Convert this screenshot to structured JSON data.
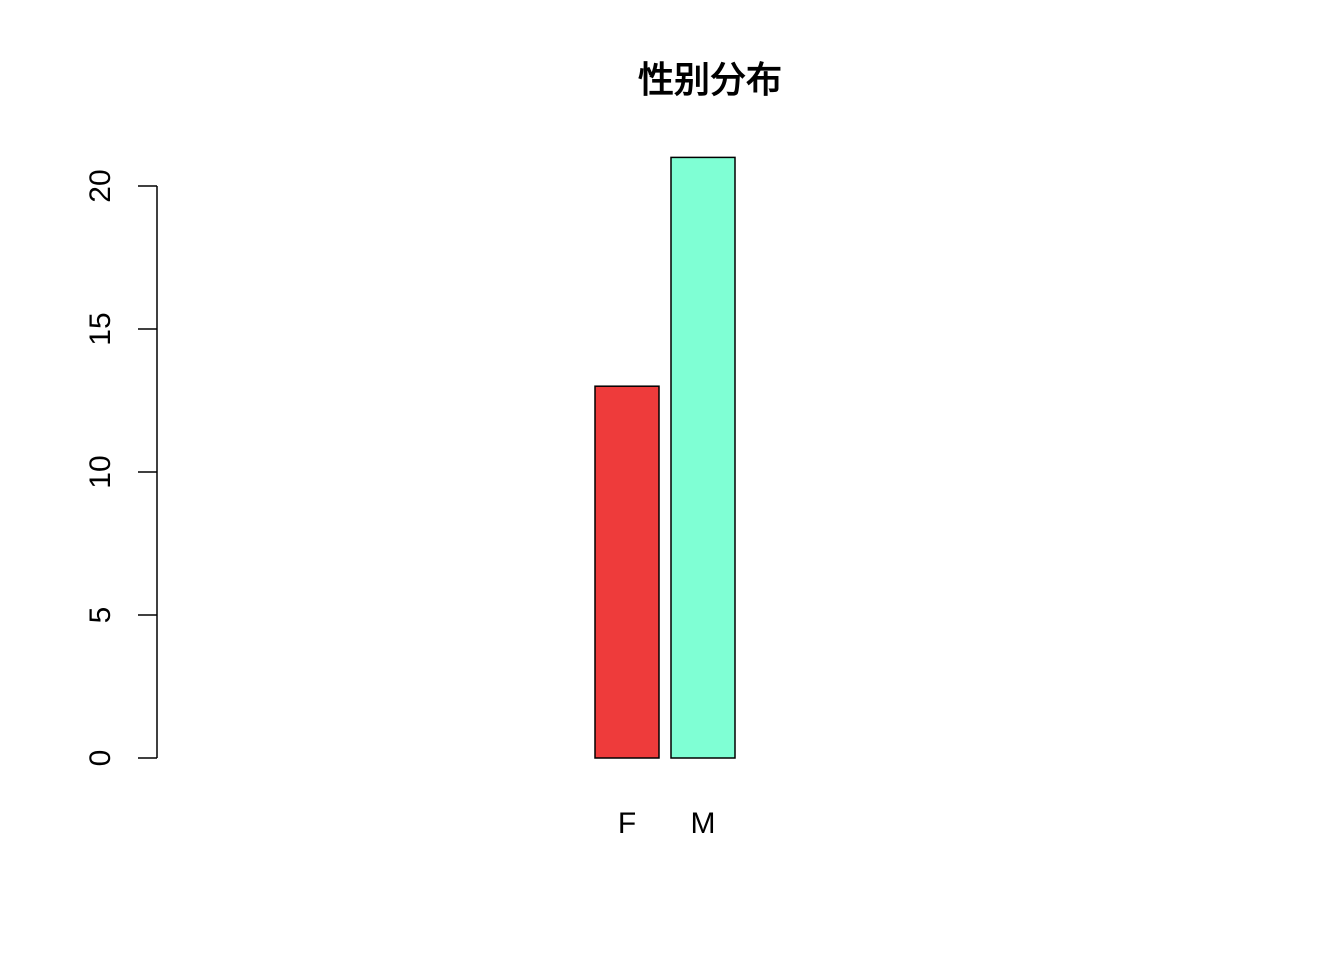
{
  "chart_data": {
    "type": "bar",
    "title": "性别分布",
    "xlabel": "",
    "ylabel": "",
    "categories": [
      "F",
      "M"
    ],
    "values": [
      13,
      21
    ],
    "colors": [
      "#EE3B3B",
      "#7FFFD4"
    ],
    "ylim": [
      0,
      20
    ],
    "yticks": [
      0,
      5,
      10,
      15,
      20
    ],
    "grid": false,
    "legend": "none"
  }
}
